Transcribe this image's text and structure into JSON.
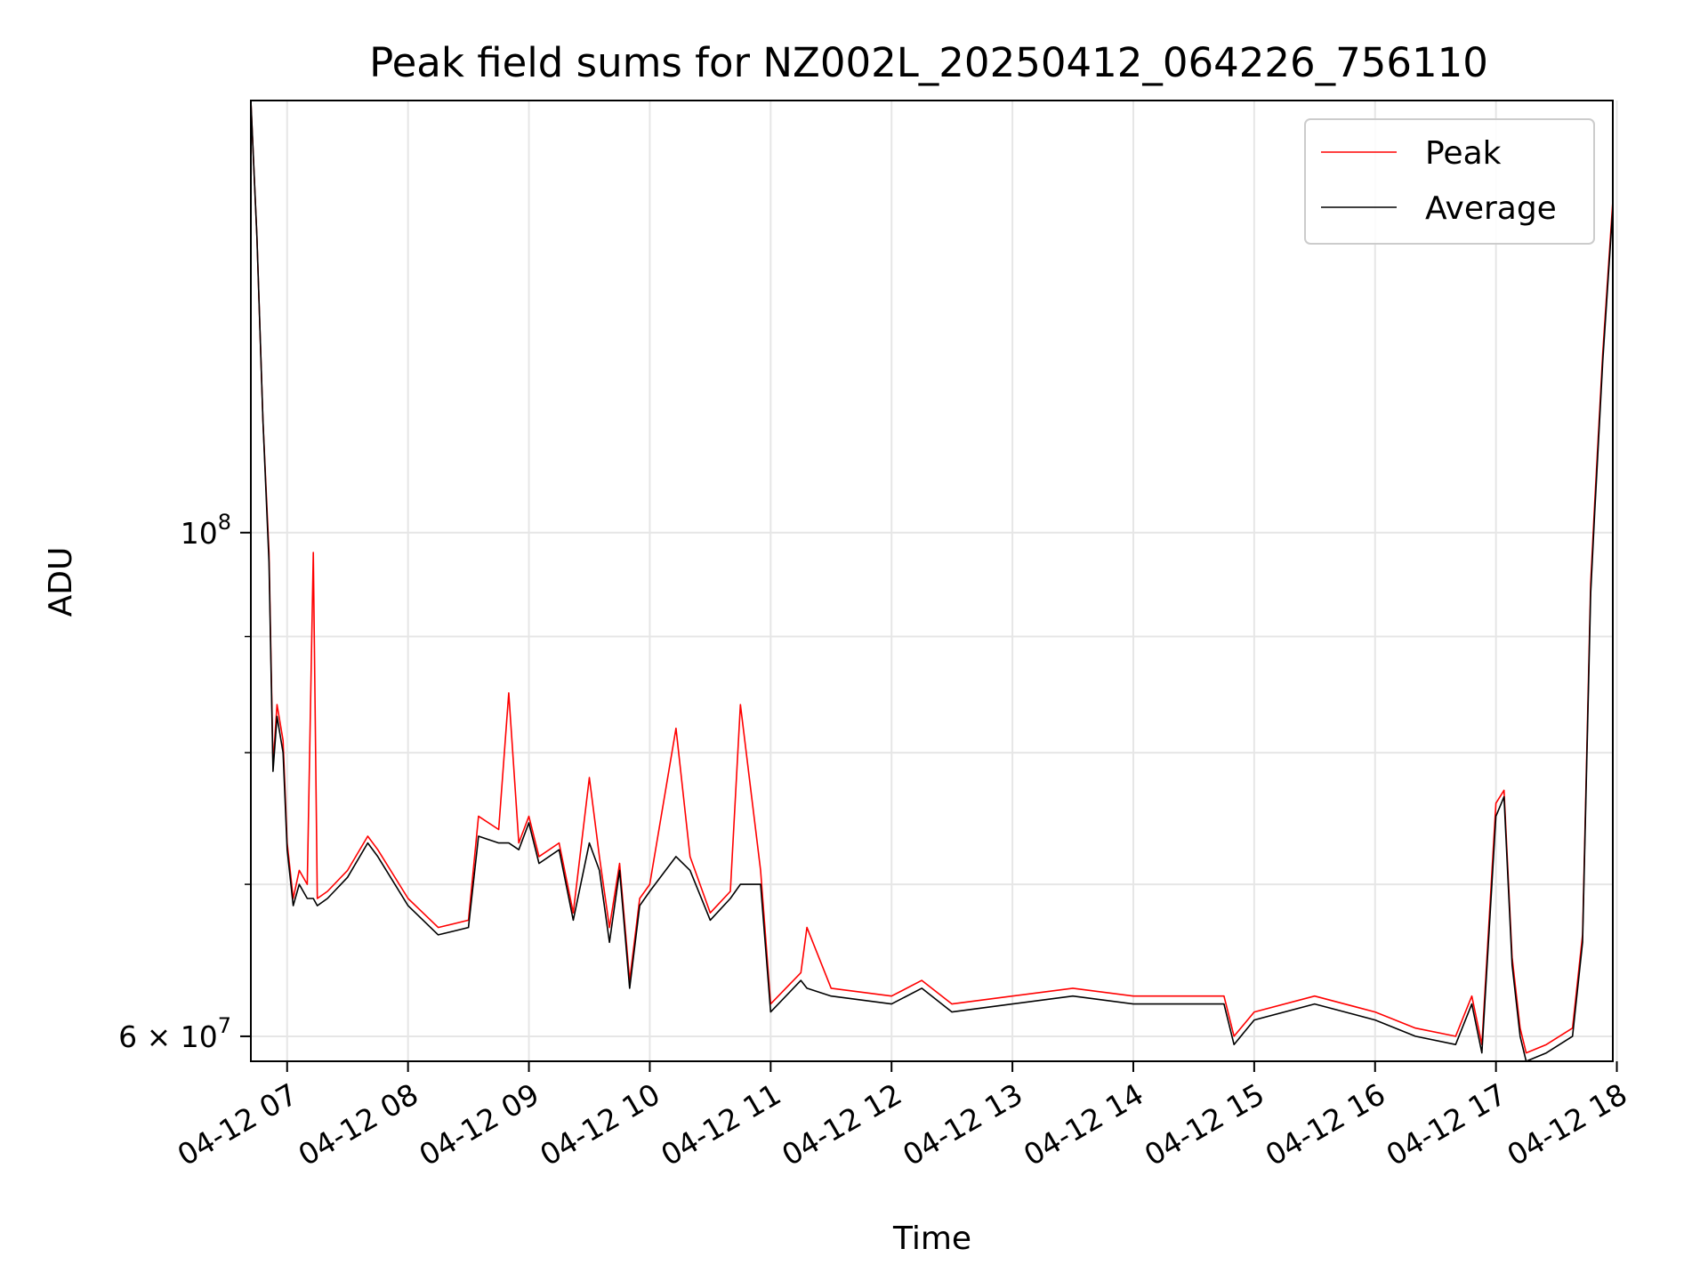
{
  "chart_data": {
    "type": "line",
    "title": "Peak field sums for NZ002L_20250412_064226_756110",
    "xlabel": "Time",
    "ylabel": "ADU",
    "y_scale": "log",
    "x_range": [
      "2025-04-12 06:42",
      "2025-04-12 17:58"
    ],
    "y_range": [
      58500000,
      155000000
    ],
    "y_ticks": [
      {
        "value": 100000000,
        "base": "10",
        "exp": "8"
      },
      {
        "value": 60000000,
        "mantissa": "6",
        "base": "10",
        "exp": "7"
      }
    ],
    "y_minor_ticks": [
      70000000,
      80000000,
      90000000
    ],
    "x_ticks": [
      {
        "label": "04-12 07",
        "value": "2025-04-12 07:00"
      },
      {
        "label": "04-12 08",
        "value": "2025-04-12 08:00"
      },
      {
        "label": "04-12 09",
        "value": "2025-04-12 09:00"
      },
      {
        "label": "04-12 10",
        "value": "2025-04-12 10:00"
      },
      {
        "label": "04-12 11",
        "value": "2025-04-12 11:00"
      },
      {
        "label": "04-12 12",
        "value": "2025-04-12 12:00"
      },
      {
        "label": "04-12 13",
        "value": "2025-04-12 13:00"
      },
      {
        "label": "04-12 14",
        "value": "2025-04-12 14:00"
      },
      {
        "label": "04-12 15",
        "value": "2025-04-12 15:00"
      },
      {
        "label": "04-12 16",
        "value": "2025-04-12 16:00"
      },
      {
        "label": "04-12 17",
        "value": "2025-04-12 17:00"
      },
      {
        "label": "04-12 18",
        "value": "2025-04-12 18:00"
      }
    ],
    "grid": true,
    "legend_position": "top-right",
    "series": [
      {
        "name": "Peak",
        "color": "#ff0000",
        "x": [
          "2025-04-12 06:42",
          "2025-04-12 06:45",
          "2025-04-12 06:48",
          "2025-04-12 06:51",
          "2025-04-12 06:53",
          "2025-04-12 06:55",
          "2025-04-12 06:58",
          "2025-04-12 07:00",
          "2025-04-12 07:03",
          "2025-04-12 07:06",
          "2025-04-12 07:10",
          "2025-04-12 07:13",
          "2025-04-12 07:15",
          "2025-04-12 07:20",
          "2025-04-12 07:30",
          "2025-04-12 07:40",
          "2025-04-12 07:45",
          "2025-04-12 08:00",
          "2025-04-12 08:15",
          "2025-04-12 08:30",
          "2025-04-12 08:35",
          "2025-04-12 08:45",
          "2025-04-12 08:50",
          "2025-04-12 08:55",
          "2025-04-12 09:00",
          "2025-04-12 09:05",
          "2025-04-12 09:15",
          "2025-04-12 09:22",
          "2025-04-12 09:30",
          "2025-04-12 09:35",
          "2025-04-12 09:40",
          "2025-04-12 09:45",
          "2025-04-12 09:50",
          "2025-04-12 09:55",
          "2025-04-12 10:00",
          "2025-04-12 10:13",
          "2025-04-12 10:20",
          "2025-04-12 10:30",
          "2025-04-12 10:40",
          "2025-04-12 10:45",
          "2025-04-12 10:55",
          "2025-04-12 11:00",
          "2025-04-12 11:15",
          "2025-04-12 11:18",
          "2025-04-12 11:30",
          "2025-04-12 12:00",
          "2025-04-12 12:15",
          "2025-04-12 12:30",
          "2025-04-12 13:00",
          "2025-04-12 13:30",
          "2025-04-12 14:00",
          "2025-04-12 14:45",
          "2025-04-12 14:50",
          "2025-04-12 15:00",
          "2025-04-12 15:30",
          "2025-04-12 16:00",
          "2025-04-12 16:20",
          "2025-04-12 16:40",
          "2025-04-12 16:48",
          "2025-04-12 16:53",
          "2025-04-12 17:00",
          "2025-04-12 17:04",
          "2025-04-12 17:08",
          "2025-04-12 17:12",
          "2025-04-12 17:15",
          "2025-04-12 17:25",
          "2025-04-12 17:38",
          "2025-04-12 17:43",
          "2025-04-12 17:47",
          "2025-04-12 17:49",
          "2025-04-12 17:53",
          "2025-04-12 17:58"
        ],
        "y": [
          155000000,
          135000000,
          112000000,
          98000000,
          79000000,
          84000000,
          81000000,
          73000000,
          69000000,
          71000000,
          70000000,
          98000000,
          69000000,
          69500000,
          71000000,
          73500000,
          72500000,
          69000000,
          67000000,
          67500000,
          75000000,
          74000000,
          85000000,
          73000000,
          75000000,
          72000000,
          73000000,
          68000000,
          78000000,
          72000000,
          67000000,
          71500000,
          63500000,
          69000000,
          70000000,
          82000000,
          72000000,
          68000000,
          69500000,
          84000000,
          71000000,
          62000000,
          64000000,
          67000000,
          63000000,
          62500000,
          63500000,
          62000000,
          62500000,
          63000000,
          62500000,
          62500000,
          60000000,
          61500000,
          62500000,
          61500000,
          60500000,
          60000000,
          62500000,
          59500000,
          76000000,
          77000000,
          65000000,
          60500000,
          59000000,
          59500000,
          60500000,
          66500000,
          95000000,
          103000000,
          120000000,
          140000000
        ]
      },
      {
        "name": "Average",
        "color": "#000000",
        "x": [
          "2025-04-12 06:42",
          "2025-04-12 06:45",
          "2025-04-12 06:48",
          "2025-04-12 06:51",
          "2025-04-12 06:53",
          "2025-04-12 06:55",
          "2025-04-12 06:58",
          "2025-04-12 07:00",
          "2025-04-12 07:03",
          "2025-04-12 07:06",
          "2025-04-12 07:10",
          "2025-04-12 07:13",
          "2025-04-12 07:15",
          "2025-04-12 07:20",
          "2025-04-12 07:30",
          "2025-04-12 07:40",
          "2025-04-12 07:45",
          "2025-04-12 08:00",
          "2025-04-12 08:15",
          "2025-04-12 08:30",
          "2025-04-12 08:35",
          "2025-04-12 08:45",
          "2025-04-12 08:50",
          "2025-04-12 08:55",
          "2025-04-12 09:00",
          "2025-04-12 09:05",
          "2025-04-12 09:15",
          "2025-04-12 09:22",
          "2025-04-12 09:30",
          "2025-04-12 09:35",
          "2025-04-12 09:40",
          "2025-04-12 09:45",
          "2025-04-12 09:50",
          "2025-04-12 09:55",
          "2025-04-12 10:00",
          "2025-04-12 10:13",
          "2025-04-12 10:20",
          "2025-04-12 10:30",
          "2025-04-12 10:40",
          "2025-04-12 10:45",
          "2025-04-12 10:55",
          "2025-04-12 11:00",
          "2025-04-12 11:15",
          "2025-04-12 11:18",
          "2025-04-12 11:30",
          "2025-04-12 12:00",
          "2025-04-12 12:15",
          "2025-04-12 12:30",
          "2025-04-12 13:00",
          "2025-04-12 13:30",
          "2025-04-12 14:00",
          "2025-04-12 14:45",
          "2025-04-12 14:50",
          "2025-04-12 15:00",
          "2025-04-12 15:30",
          "2025-04-12 16:00",
          "2025-04-12 16:20",
          "2025-04-12 16:40",
          "2025-04-12 16:48",
          "2025-04-12 16:53",
          "2025-04-12 17:00",
          "2025-04-12 17:04",
          "2025-04-12 17:08",
          "2025-04-12 17:12",
          "2025-04-12 17:15",
          "2025-04-12 17:25",
          "2025-04-12 17:38",
          "2025-04-12 17:43",
          "2025-04-12 17:47",
          "2025-04-12 17:49",
          "2025-04-12 17:53",
          "2025-04-12 17:58"
        ],
        "y": [
          155000000,
          135000000,
          112000000,
          97000000,
          78500000,
          83000000,
          80000000,
          72500000,
          68500000,
          70000000,
          69000000,
          69000000,
          68500000,
          69000000,
          70500000,
          73000000,
          72000000,
          68500000,
          66500000,
          67000000,
          73500000,
          73000000,
          73000000,
          72500000,
          74500000,
          71500000,
          72500000,
          67500000,
          73000000,
          71000000,
          66000000,
          71000000,
          63000000,
          68500000,
          69500000,
          72000000,
          71000000,
          67500000,
          69000000,
          70000000,
          70000000,
          61500000,
          63500000,
          63000000,
          62500000,
          62000000,
          63000000,
          61500000,
          62000000,
          62500000,
          62000000,
          62000000,
          59500000,
          61000000,
          62000000,
          61000000,
          60000000,
          59500000,
          62000000,
          59000000,
          75000000,
          76500000,
          64500000,
          60000000,
          58500000,
          59000000,
          60000000,
          66000000,
          94000000,
          102000000,
          119000000,
          139000000
        ]
      }
    ]
  }
}
